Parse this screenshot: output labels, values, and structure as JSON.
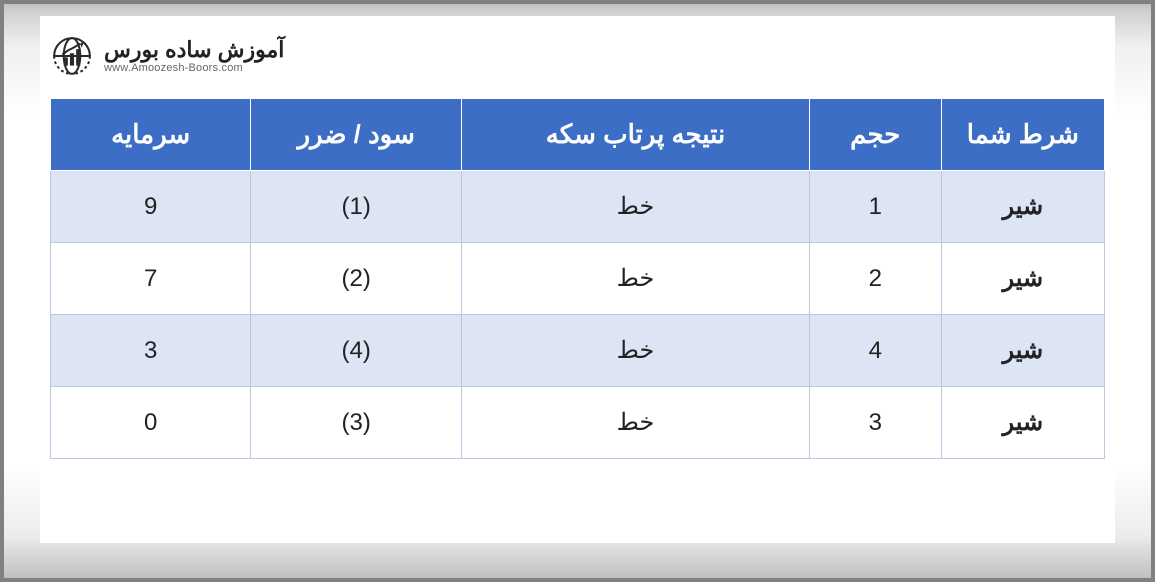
{
  "logo": {
    "title": "آموزش ساده بورس",
    "subtitle": "www.Amoozesh-Boors.com"
  },
  "table": {
    "header_bg": "#3d6ec5",
    "header_border": "#ffffff",
    "row_border": "#b9c7e4",
    "row_even_bg": "#dde5f5",
    "row_odd_bg": "#ffffff",
    "text_color": "#222222",
    "columns": [
      {
        "key": "bet",
        "label": "شرط شما",
        "class": "c-bet"
      },
      {
        "key": "vol",
        "label": "حجم",
        "class": "c-vol"
      },
      {
        "key": "result",
        "label": "نتیجه پرتاب سکه",
        "class": "c-result"
      },
      {
        "key": "pl",
        "label": "سود / ضرر",
        "class": "c-pl"
      },
      {
        "key": "cap",
        "label": "سرمایه",
        "class": "c-cap"
      }
    ],
    "rows": [
      {
        "bet": "شیر",
        "vol": "1",
        "result": "خط",
        "pl": "(1)",
        "cap": "9"
      },
      {
        "bet": "شیر",
        "vol": "2",
        "result": "خط",
        "pl": "(2)",
        "cap": "7"
      },
      {
        "bet": "شیر",
        "vol": "4",
        "result": "خط",
        "pl": "(4)",
        "cap": "3"
      },
      {
        "bet": "شیر",
        "vol": "3",
        "result": "خط",
        "pl": "(3)",
        "cap": "0"
      }
    ]
  }
}
